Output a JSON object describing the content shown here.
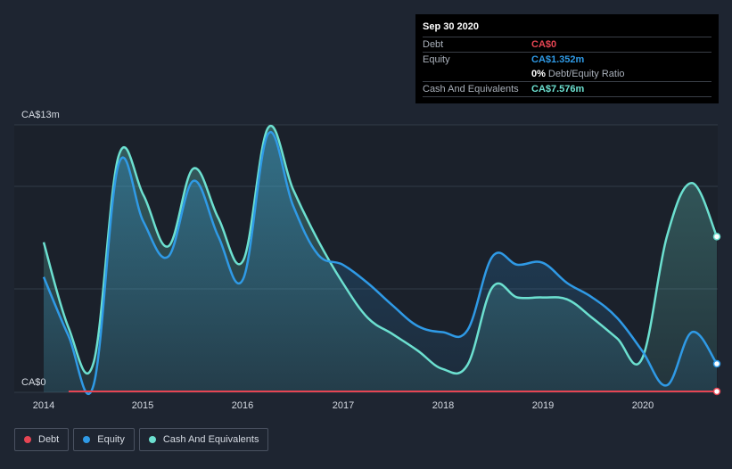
{
  "colors": {
    "debt": "#e64553",
    "equity": "#2f9ae6",
    "cash": "#6ce0d0",
    "background": "#1e2531",
    "plot_background": "#1b212b"
  },
  "tooltip": {
    "date": "Sep 30 2020",
    "debt_label": "Debt",
    "debt_value": "CA$0",
    "equity_label": "Equity",
    "equity_value": "CA$1.352m",
    "ratio_value": "0%",
    "ratio_label": "Debt/Equity Ratio",
    "cash_label": "Cash And Equivalents",
    "cash_value": "CA$7.576m"
  },
  "legend": {
    "debt": "Debt",
    "equity": "Equity",
    "cash": "Cash And Equivalents"
  },
  "chart_data": {
    "type": "area",
    "ylabel_top": "CA$13m",
    "ylabel_bottom": "CA$0",
    "ylim": [
      0,
      13
    ],
    "xlim": [
      2014.0,
      2020.75
    ],
    "x_ticks": [
      "2014",
      "2015",
      "2016",
      "2017",
      "2018",
      "2019",
      "2020"
    ],
    "x_tick_values": [
      2014,
      2015,
      2016,
      2017,
      2018,
      2019,
      2020
    ],
    "grid": true,
    "legend_position": "bottom-left",
    "series": [
      {
        "name": "Debt",
        "key": "debt",
        "x": [
          2014.25,
          2020.75
        ],
        "values": [
          0,
          0
        ]
      },
      {
        "name": "Equity",
        "key": "equity",
        "x": [
          2014.0,
          2014.25,
          2014.5,
          2014.75,
          2015.0,
          2015.25,
          2015.5,
          2015.75,
          2016.0,
          2016.25,
          2016.5,
          2016.75,
          2017.0,
          2017.25,
          2017.5,
          2017.75,
          2018.0,
          2018.25,
          2018.5,
          2018.75,
          2019.0,
          2019.25,
          2019.5,
          2019.75,
          2020.0,
          2020.25,
          2020.5,
          2020.75
        ],
        "values": [
          5.6,
          2.7,
          0.3,
          11.1,
          8.3,
          6.6,
          10.3,
          7.6,
          5.5,
          12.6,
          9.1,
          6.7,
          6.2,
          5.3,
          4.2,
          3.2,
          2.9,
          3.0,
          6.6,
          6.2,
          6.3,
          5.3,
          4.6,
          3.6,
          2.0,
          0.3,
          2.9,
          1.352
        ]
      },
      {
        "name": "Cash And Equivalents",
        "key": "cash",
        "x": [
          2014.0,
          2014.25,
          2014.5,
          2014.75,
          2015.0,
          2015.25,
          2015.5,
          2015.75,
          2016.0,
          2016.25,
          2016.5,
          2016.75,
          2017.0,
          2017.25,
          2017.5,
          2017.75,
          2018.0,
          2018.25,
          2018.5,
          2018.75,
          2019.0,
          2019.25,
          2019.5,
          2019.75,
          2020.0,
          2020.25,
          2020.5,
          2020.75
        ],
        "values": [
          7.3,
          3.1,
          1.4,
          11.5,
          9.6,
          7.1,
          10.9,
          8.5,
          6.4,
          12.9,
          9.9,
          7.4,
          5.3,
          3.6,
          2.8,
          2.0,
          1.1,
          1.3,
          5.1,
          4.6,
          4.6,
          4.5,
          3.6,
          2.6,
          1.6,
          7.6,
          10.2,
          7.576
        ]
      }
    ]
  }
}
